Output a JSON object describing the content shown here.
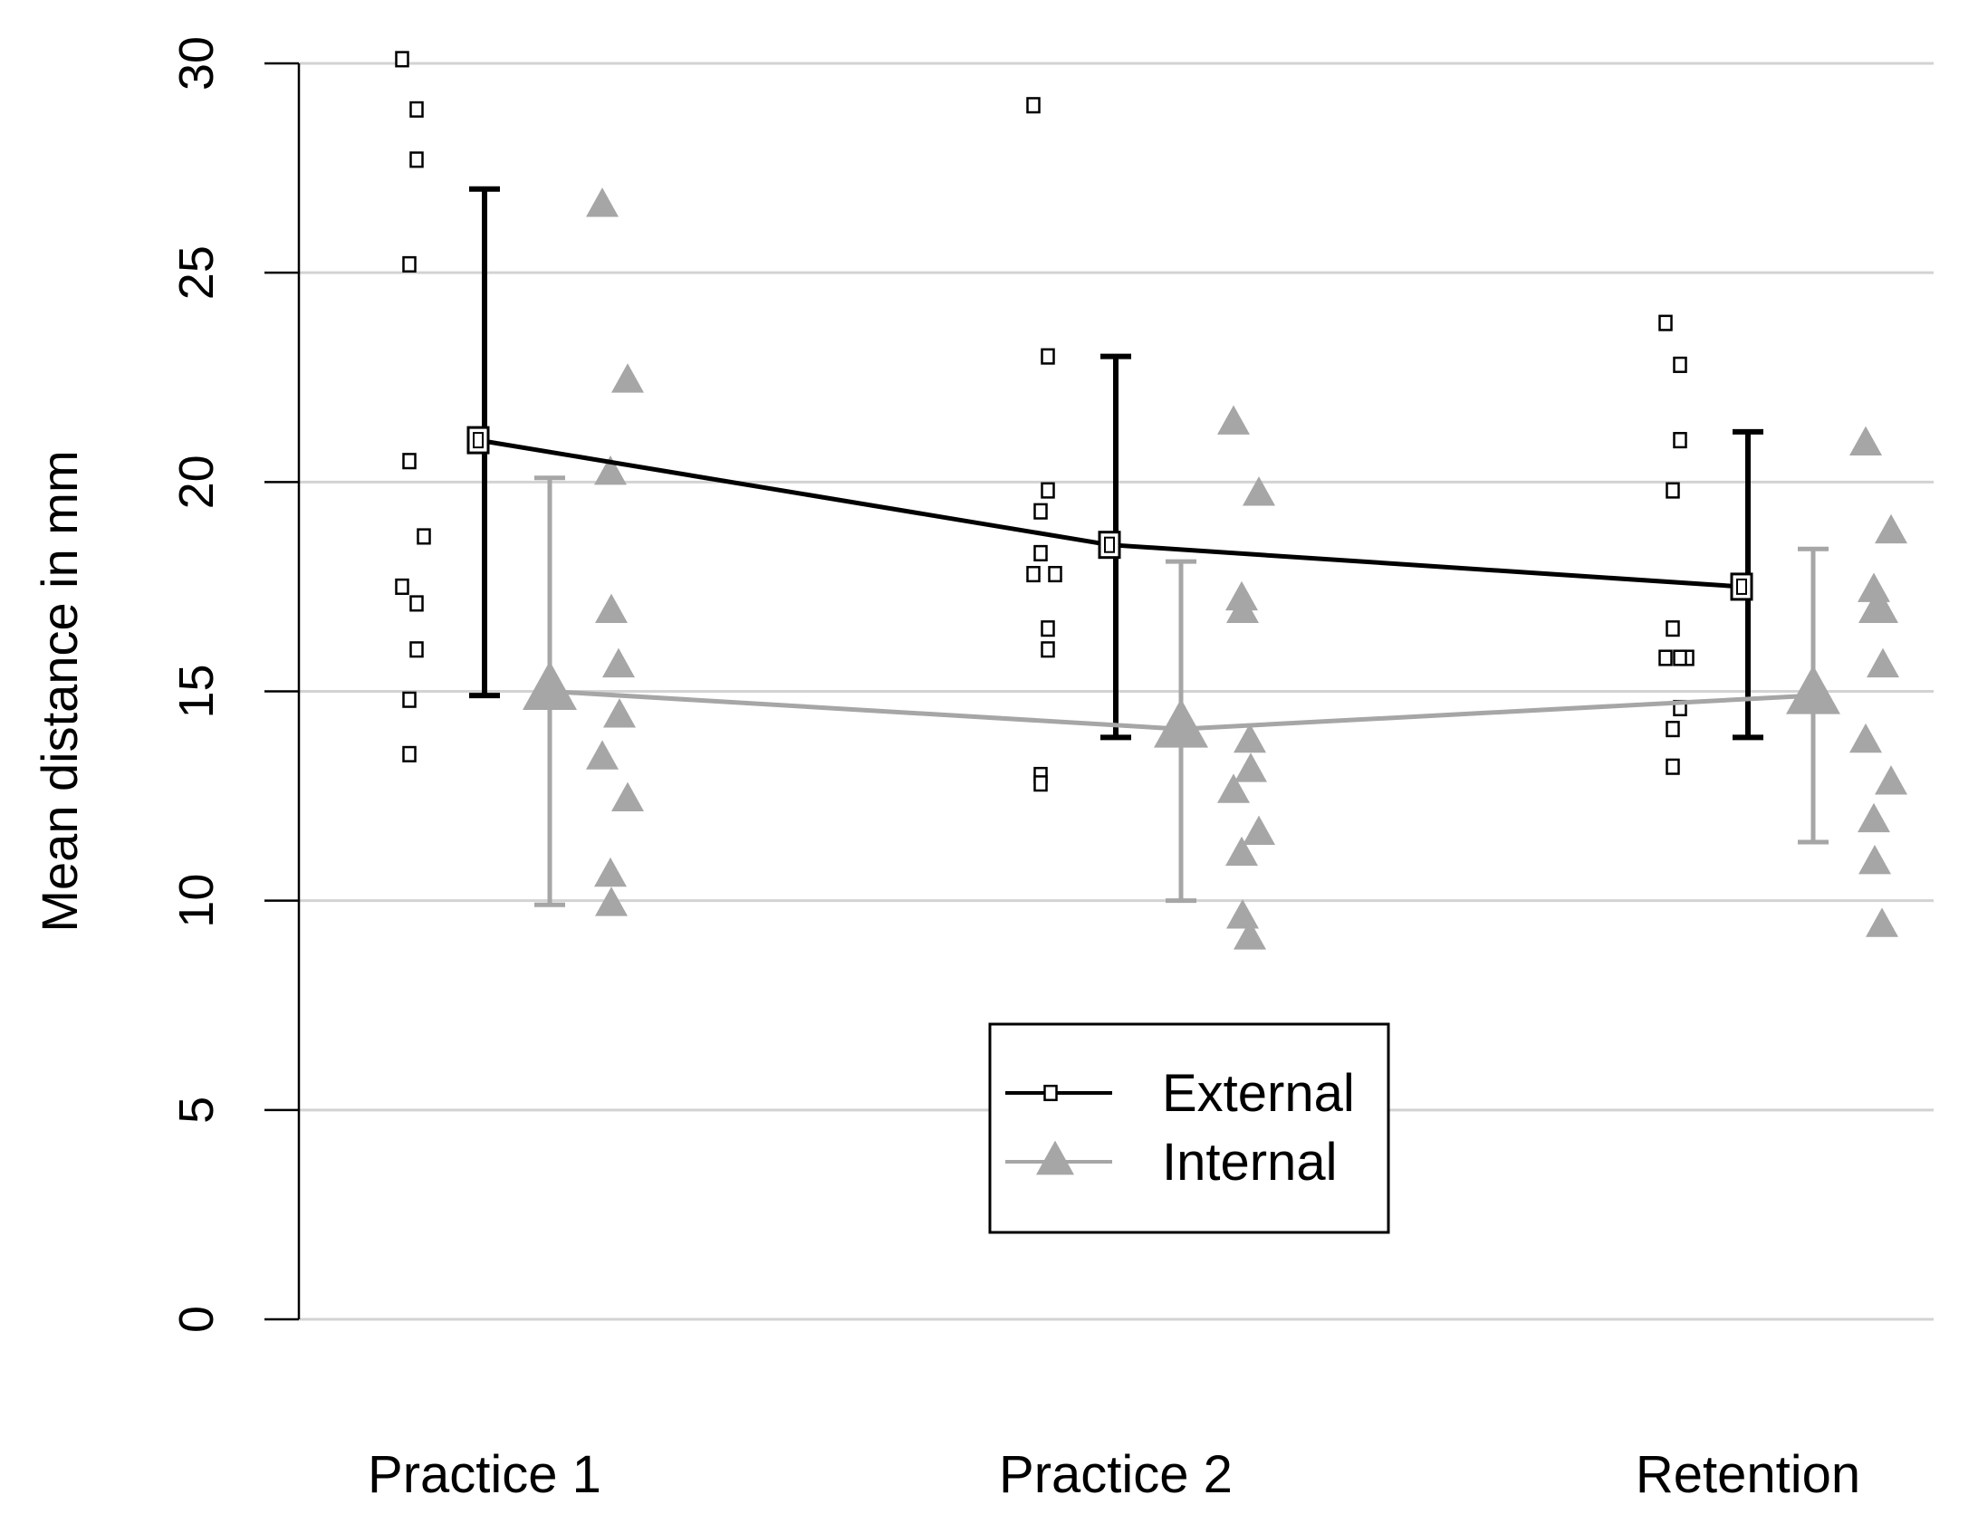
{
  "chart_data": {
    "type": "line",
    "title": "",
    "xlabel": "",
    "ylabel": "Mean distance in mm",
    "categories": [
      "Practice 1",
      "Practice 2",
      "Retention"
    ],
    "ylim": [
      0,
      30
    ],
    "yticks": [
      0,
      5,
      10,
      15,
      20,
      25,
      30
    ],
    "grid": true,
    "legend_position": "bottom-center",
    "series": [
      {
        "name": "External",
        "marker": "square",
        "color": "#000000",
        "means": [
          21.0,
          18.5,
          17.5
        ],
        "error_low": [
          14.9,
          13.9,
          13.9
        ],
        "error_high": [
          27.0,
          23.0,
          21.2
        ],
        "individuals": [
          [
            30.1,
            28.9,
            27.7,
            25.2,
            20.5,
            18.7,
            17.5,
            17.1,
            16.0,
            14.8,
            13.5
          ],
          [
            29.0,
            23.0,
            19.8,
            19.3,
            18.3,
            17.8,
            17.8,
            16.5,
            16.0,
            13.0,
            12.8
          ],
          [
            23.8,
            22.8,
            21.0,
            19.8,
            16.5,
            15.8,
            15.8,
            15.8,
            14.6,
            14.1,
            13.2
          ]
        ]
      },
      {
        "name": "Internal",
        "marker": "triangle",
        "color": "#a6a6a6",
        "means": [
          15.0,
          14.1,
          14.9
        ],
        "error_low": [
          9.9,
          10.0,
          11.4
        ],
        "error_high": [
          20.1,
          18.1,
          18.4
        ],
        "individuals": [
          [
            26.6,
            22.4,
            20.2,
            16.9,
            15.6,
            14.4,
            13.4,
            12.4,
            10.6,
            9.9
          ],
          [
            21.4,
            19.7,
            17.2,
            16.9,
            13.8,
            13.1,
            12.6,
            11.6,
            11.1,
            9.6,
            9.1
          ],
          [
            20.9,
            18.8,
            17.4,
            16.9,
            16.9,
            15.6,
            13.8,
            12.8,
            11.9,
            10.9,
            9.4
          ]
        ]
      }
    ]
  }
}
